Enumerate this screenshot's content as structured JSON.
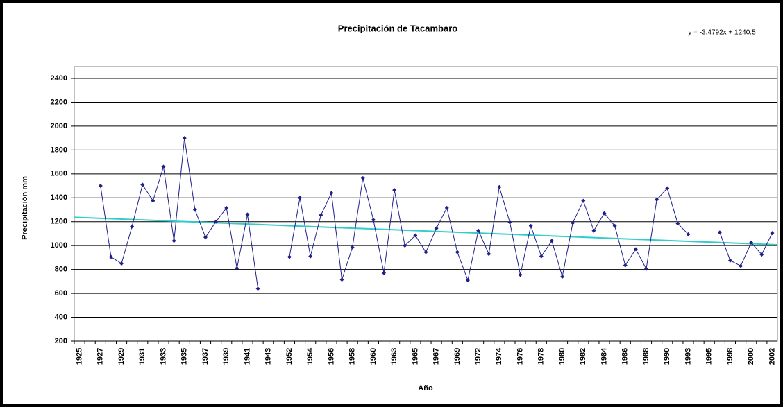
{
  "chart_data": {
    "type": "line",
    "title": "Precipitación de Tacambaro",
    "annotation": "y = -3.4792x + 1240.5",
    "xlabel": "Año",
    "ylabel": "Precipitación mm",
    "categories": [
      "1925",
      null,
      "1927",
      null,
      "1929",
      null,
      "1931",
      null,
      "1933",
      null,
      "1935",
      null,
      "1937",
      null,
      "1939",
      null,
      "1941",
      null,
      "1943",
      null,
      "1952",
      null,
      "1954",
      null,
      "1956",
      null,
      "1958",
      null,
      "1960",
      null,
      "1963",
      null,
      "1965",
      null,
      "1967",
      null,
      "1969",
      null,
      "1972",
      null,
      "1974",
      null,
      "1976",
      null,
      "1978",
      null,
      "1980",
      null,
      "1982",
      null,
      "1984",
      null,
      "1986",
      null,
      "1988",
      null,
      "1990",
      null,
      "1993",
      null,
      "1995",
      null,
      "1998",
      null,
      "2000",
      null,
      "2002"
    ],
    "series": [
      {
        "name": "Precipitación",
        "color": "#1f1f8a",
        "values": [
          null,
          null,
          1500,
          905,
          850,
          1160,
          1510,
          1375,
          1660,
          1040,
          1900,
          1300,
          1070,
          1200,
          1315,
          810,
          1260,
          640,
          null,
          null,
          905,
          1400,
          910,
          1255,
          1440,
          715,
          985,
          1565,
          1215,
          770,
          1465,
          1000,
          1085,
          945,
          1145,
          1315,
          945,
          710,
          1125,
          930,
          1490,
          1195,
          755,
          1165,
          910,
          1040,
          740,
          1190,
          1375,
          1125,
          1270,
          1165,
          835,
          970,
          805,
          1385,
          1480,
          1185,
          1095,
          null,
          null,
          1110,
          875,
          830,
          1025,
          925,
          1105
        ]
      }
    ],
    "trend": {
      "color": "#33cccc",
      "start": 1237,
      "end": 1007
    },
    "ylim": [
      200,
      2400
    ],
    "yticks": [
      200,
      400,
      600,
      800,
      1000,
      1200,
      1400,
      1600,
      1800,
      2000,
      2200,
      2400
    ],
    "grid": true
  }
}
